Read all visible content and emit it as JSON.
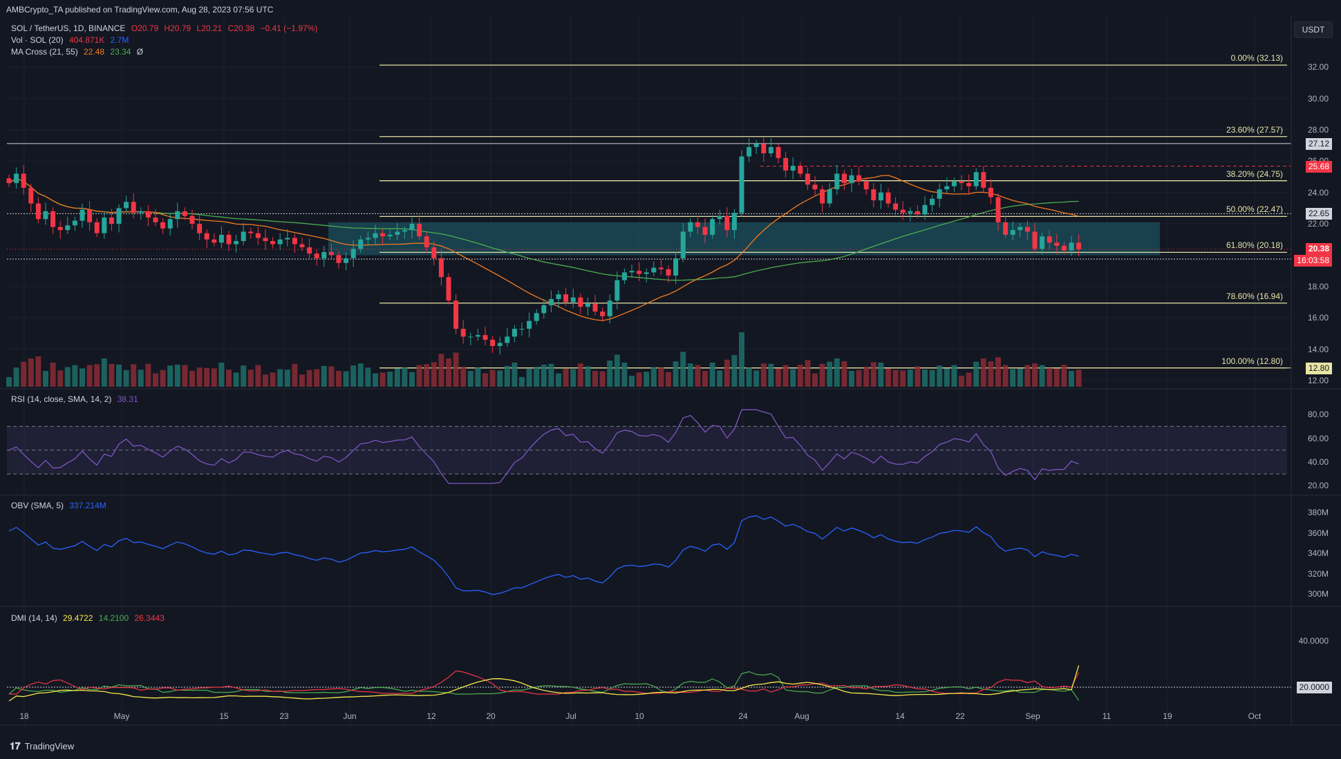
{
  "header": {
    "published": "AMBCrypto_TA published on TradingView.com, Aug 28, 2023 07:56 UTC"
  },
  "legend": {
    "symbol": "SOL / TetherUS, 1D, BINANCE",
    "ohlc": {
      "o": "O20.79",
      "h": "H20.79",
      "l": "L20.21",
      "c": "C20.38",
      "chg": "−0.41 (−1.97%)"
    },
    "vol": {
      "label": "Vol · SOL (20)",
      "v1": "404.871K",
      "v2": "2.7M"
    },
    "ma": {
      "label": "MA Cross (21, 55)",
      "v1": "22.48",
      "v2": "23.34",
      "icon": "Ø"
    },
    "rsi": {
      "label": "RSI (14, close, SMA, 14, 2)",
      "value": "38.31"
    },
    "obv": {
      "label": "OBV (SMA, 5)",
      "value": "337.214M"
    },
    "dmi": {
      "label": "DMI (14, 14)",
      "v1": "29.4722",
      "v2": "14.2100",
      "v3": "26.3443"
    }
  },
  "currency_button": "USDT",
  "footer": {
    "brand": "TradingView"
  },
  "colors": {
    "up": "#26a69a",
    "down": "#f23645",
    "fib": "#e8e4a5",
    "ma_fast": "#f57c1f",
    "ma_slow": "#4caf50",
    "rsi": "#7e57c2",
    "obv": "#2962ff",
    "adx": "#f7ea48",
    "di_plus": "#4caf50",
    "di_minus": "#f23645",
    "zone": "#1b4f5c"
  },
  "chart_data": {
    "type": "candlestick",
    "symbol": "SOL / TetherUS",
    "timeframe": "1D",
    "price_axis": {
      "ticks": [
        "32.00",
        "30.00",
        "28.00",
        "26.00",
        "24.00",
        "22.00",
        "20.00",
        "18.00",
        "16.00",
        "14.00",
        "12.00"
      ],
      "range": [
        11.6,
        33.2
      ]
    },
    "x_ticks": [
      "18",
      "May",
      "15",
      "23",
      "Jun",
      "12",
      "20",
      "Jul",
      "10",
      "24",
      "Aug",
      "14",
      "22",
      "Sep",
      "11",
      "19",
      "Oct"
    ],
    "fib_levels": [
      {
        "label": "0.00% (32.13)",
        "price": 32.13
      },
      {
        "label": "23.60% (27.57)",
        "price": 27.57
      },
      {
        "label": "38.20% (24.75)",
        "price": 24.75
      },
      {
        "label": "50.00% (22.47)",
        "price": 22.47
      },
      {
        "label": "61.80% (20.18)",
        "price": 20.18
      },
      {
        "label": "78.60% (16.94)",
        "price": 16.94
      },
      {
        "label": "100.00% (12.80)",
        "price": 12.8
      }
    ],
    "horizontal_levels": [
      {
        "label": "27.12",
        "price": 27.12
      },
      {
        "label": "25.68",
        "price": 25.68
      },
      {
        "label": "22.65",
        "price": 22.65
      },
      {
        "label": "19.75",
        "price": 19.75
      },
      {
        "label": "12.80",
        "price": 12.8
      }
    ],
    "last_price": {
      "label": "20.38",
      "countdown": "16:03:58",
      "price": 20.38
    },
    "demand_zone": {
      "top": 22.1,
      "bottom": 20.0
    },
    "closes": [
      24.6,
      25.2,
      24.3,
      23.3,
      22.3,
      22.8,
      21.8,
      21.6,
      21.9,
      22.2,
      22.9,
      22.1,
      21.4,
      22.4,
      22.0,
      23.0,
      23.4,
      22.7,
      22.8,
      22.4,
      22.1,
      21.7,
      22.3,
      22.8,
      22.5,
      22.0,
      21.4,
      21.0,
      20.8,
      21.3,
      20.7,
      20.9,
      21.5,
      21.4,
      21.1,
      20.9,
      20.7,
      21.0,
      21.1,
      20.7,
      20.5,
      20.1,
      19.8,
      20.2,
      20.0,
      19.5,
      19.8,
      20.4,
      21.0,
      21.1,
      21.4,
      21.2,
      21.3,
      21.5,
      21.6,
      22.0,
      21.2,
      20.5,
      19.8,
      18.6,
      17.1,
      15.3,
      14.8,
      14.8,
      14.9,
      14.6,
      14.2,
      14.4,
      14.8,
      15.3,
      15.3,
      15.8,
      16.3,
      16.8,
      17.2,
      17.5,
      17.0,
      17.3,
      16.7,
      16.9,
      16.4,
      16.1,
      17.1,
      18.4,
      18.9,
      19.0,
      18.8,
      18.9,
      19.2,
      19.1,
      18.7,
      19.8,
      21.5,
      22.1,
      21.8,
      21.3,
      22.3,
      22.5,
      21.6,
      22.7,
      26.3,
      26.9,
      27.1,
      26.5,
      26.9,
      26.2,
      25.4,
      25.7,
      25.2,
      24.5,
      24.2,
      23.3,
      24.2,
      25.2,
      24.6,
      25.1,
      24.7,
      24.2,
      23.5,
      24.0,
      23.3,
      22.9,
      22.7,
      22.8,
      22.6,
      23.2,
      23.6,
      24.2,
      24.4,
      24.7,
      24.6,
      24.4,
      25.3,
      24.3,
      23.7,
      22.1,
      21.3,
      21.6,
      21.8,
      21.5,
      20.4,
      21.2,
      20.8,
      20.6,
      20.3,
      20.8,
      20.38
    ],
    "ma_fast_last": 22.48,
    "ma_slow_last": 23.34,
    "volume_last": "404.871K",
    "rsi_axis": [
      "80.00",
      "60.00",
      "40.00",
      "20.00"
    ],
    "rsi_bands": {
      "upper": 70,
      "middle": 50,
      "lower": 30
    },
    "rsi_last": 38.31,
    "obv_axis": [
      "380M",
      "360M",
      "340M",
      "320M",
      "300M"
    ],
    "obv_last": 337.214,
    "dmi_axis": [
      "40.0000",
      "20.0000"
    ],
    "dmi_last": {
      "adx": 29.4722,
      "di_plus": 14.21,
      "di_minus": 26.3443
    }
  }
}
